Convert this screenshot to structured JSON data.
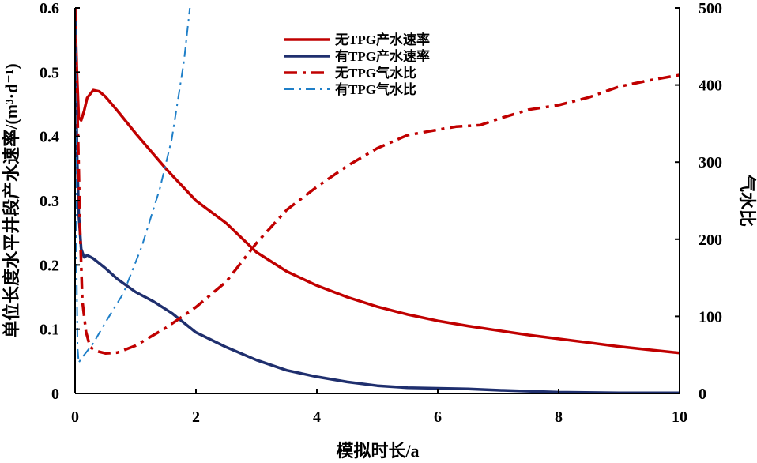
{
  "chart_data": {
    "type": "line",
    "title": "",
    "xlabel": "模拟时长/a",
    "ylabel": "单位长度水平井段产水速率/(m³·d⁻¹)",
    "y2label": "气水比",
    "xlim": [
      0,
      10
    ],
    "ylim": [
      0,
      0.6
    ],
    "y2lim": [
      0,
      500
    ],
    "x_ticks": [
      "0",
      "2",
      "4",
      "6",
      "8",
      "10"
    ],
    "y_ticks": [
      "0",
      "0.1",
      "0.2",
      "0.3",
      "0.4",
      "0.5",
      "0.6"
    ],
    "y2_ticks": [
      "0",
      "100",
      "200",
      "300",
      "400",
      "500"
    ],
    "grid": false,
    "legend_position": "top-center",
    "series": [
      {
        "name": "无TPG产水速率",
        "axis": "left",
        "color": "#c00000",
        "style": "solid",
        "points": [
          [
            0,
            0.6
          ],
          [
            0.03,
            0.5
          ],
          [
            0.06,
            0.43
          ],
          [
            0.1,
            0.425
          ],
          [
            0.15,
            0.44
          ],
          [
            0.2,
            0.46
          ],
          [
            0.3,
            0.472
          ],
          [
            0.4,
            0.47
          ],
          [
            0.5,
            0.462
          ],
          [
            0.7,
            0.44
          ],
          [
            1.0,
            0.405
          ],
          [
            1.5,
            0.35
          ],
          [
            2.0,
            0.3
          ],
          [
            2.5,
            0.265
          ],
          [
            3.0,
            0.22
          ],
          [
            3.5,
            0.19
          ],
          [
            4.0,
            0.168
          ],
          [
            4.5,
            0.15
          ],
          [
            5.0,
            0.135
          ],
          [
            5.5,
            0.123
          ],
          [
            6.0,
            0.113
          ],
          [
            6.5,
            0.105
          ],
          [
            7.0,
            0.098
          ],
          [
            7.5,
            0.091
          ],
          [
            8.0,
            0.085
          ],
          [
            8.5,
            0.079
          ],
          [
            9.0,
            0.073
          ],
          [
            9.5,
            0.068
          ],
          [
            10.0,
            0.063
          ]
        ]
      },
      {
        "name": "有TPG产水速率",
        "axis": "left",
        "color": "#1f2f6e",
        "style": "solid",
        "points": [
          [
            0,
            0.6
          ],
          [
            0.03,
            0.38
          ],
          [
            0.06,
            0.28
          ],
          [
            0.1,
            0.225
          ],
          [
            0.15,
            0.212
          ],
          [
            0.2,
            0.215
          ],
          [
            0.3,
            0.21
          ],
          [
            0.5,
            0.195
          ],
          [
            0.7,
            0.178
          ],
          [
            1.0,
            0.158
          ],
          [
            1.3,
            0.143
          ],
          [
            1.6,
            0.125
          ],
          [
            2.0,
            0.095
          ],
          [
            2.5,
            0.072
          ],
          [
            3.0,
            0.052
          ],
          [
            3.5,
            0.036
          ],
          [
            4.0,
            0.026
          ],
          [
            4.5,
            0.018
          ],
          [
            5.0,
            0.012
          ],
          [
            5.5,
            0.009
          ],
          [
            6.0,
            0.008
          ],
          [
            6.5,
            0.007
          ],
          [
            7.0,
            0.005
          ],
          [
            8.0,
            0.002
          ],
          [
            9.0,
            0.001
          ],
          [
            10.0,
            0.001
          ]
        ]
      },
      {
        "name": "无TPG气水比",
        "axis": "right",
        "color": "#c00000",
        "style": "dash-dot-thick",
        "points": [
          [
            0,
            500
          ],
          [
            0.02,
            420
          ],
          [
            0.05,
            330
          ],
          [
            0.08,
            220
          ],
          [
            0.12,
            120
          ],
          [
            0.18,
            80
          ],
          [
            0.25,
            60
          ],
          [
            0.35,
            55
          ],
          [
            0.5,
            52
          ],
          [
            0.7,
            53
          ],
          [
            1.0,
            62
          ],
          [
            1.5,
            85
          ],
          [
            2.0,
            112
          ],
          [
            2.5,
            145
          ],
          [
            3.0,
            195
          ],
          [
            3.5,
            238
          ],
          [
            4.0,
            268
          ],
          [
            4.5,
            295
          ],
          [
            5.0,
            318
          ],
          [
            5.5,
            335
          ],
          [
            6.0,
            342
          ],
          [
            6.3,
            346
          ],
          [
            6.7,
            348
          ],
          [
            7.0,
            356
          ],
          [
            7.5,
            368
          ],
          [
            8.0,
            374
          ],
          [
            8.5,
            384
          ],
          [
            9.0,
            398
          ],
          [
            9.5,
            406
          ],
          [
            10.0,
            413
          ]
        ]
      },
      {
        "name": "有TPG气水比",
        "axis": "right",
        "color": "#1f7fc8",
        "style": "dash-dot-thin",
        "points": [
          [
            0,
            500
          ],
          [
            0.02,
            200
          ],
          [
            0.04,
            60
          ],
          [
            0.06,
            40
          ],
          [
            0.1,
            45
          ],
          [
            0.3,
            65
          ],
          [
            0.5,
            92
          ],
          [
            0.8,
            130
          ],
          [
            1.1,
            190
          ],
          [
            1.4,
            265
          ],
          [
            1.6,
            330
          ],
          [
            1.8,
            430
          ],
          [
            1.9,
            500
          ]
        ]
      }
    ]
  }
}
